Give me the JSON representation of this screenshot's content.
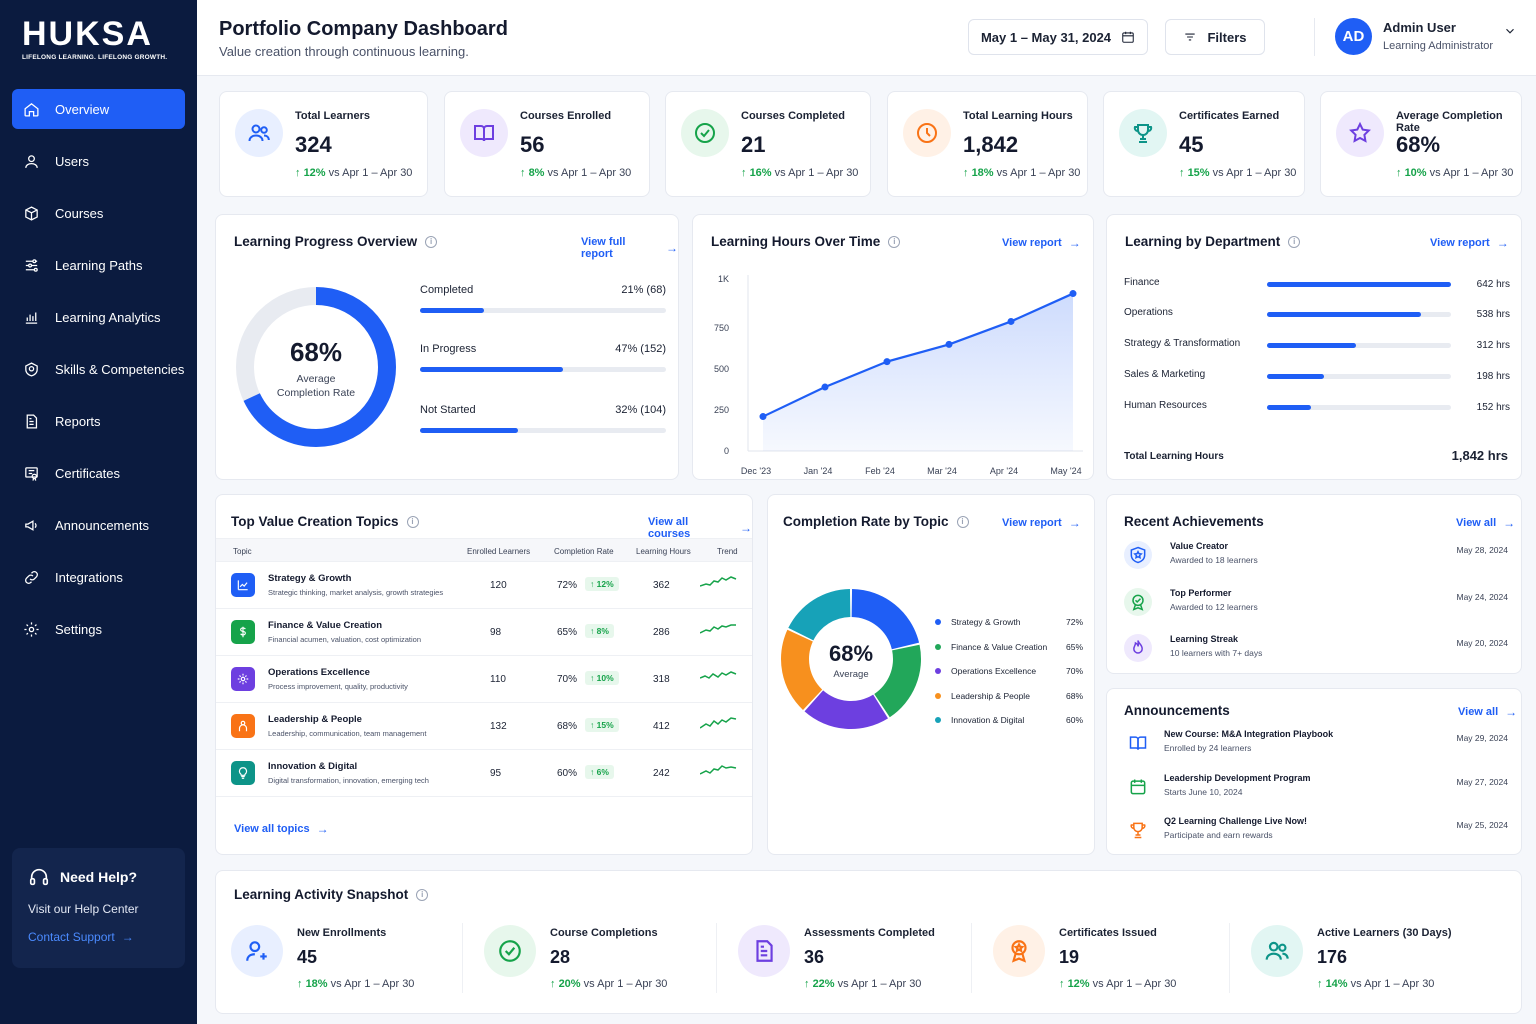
{
  "brand": {
    "logo": "HUKSA",
    "tagline": "LIFELONG LEARNING. LIFELONG GROWTH."
  },
  "nav": [
    {
      "label": "Overview",
      "icon": "home-icon",
      "active": true
    },
    {
      "label": "Users",
      "icon": "user-icon"
    },
    {
      "label": "Courses",
      "icon": "cube-icon"
    },
    {
      "label": "Learning Paths",
      "icon": "sliders-icon"
    },
    {
      "label": "Learning Analytics",
      "icon": "bar-chart-icon"
    },
    {
      "label": "Skills & Competencies",
      "icon": "badge-icon"
    },
    {
      "label": "Reports",
      "icon": "report-icon"
    },
    {
      "label": "Certificates",
      "icon": "certificate-icon"
    },
    {
      "label": "Announcements",
      "icon": "megaphone-icon"
    },
    {
      "label": "Integrations",
      "icon": "link-icon"
    },
    {
      "label": "Settings",
      "icon": "gear-icon"
    }
  ],
  "help": {
    "title": "Need Help?",
    "subtitle": "Visit our Help Center",
    "link": "Contact Support"
  },
  "header": {
    "title": "Portfolio Company Dashboard",
    "subtitle": "Value creation through continuous learning.",
    "date_range": "May 1 – May 31, 2024",
    "filters": "Filters",
    "user": {
      "initials": "AD",
      "name": "Admin User",
      "role": "Learning Administrator"
    }
  },
  "kpis": [
    {
      "label": "Total Learners",
      "value": "324",
      "delta": "12%",
      "period": "vs Apr 1 – Apr 30",
      "icon": "users-icon",
      "color": "#1f5ef5",
      "bg": "#e8efff"
    },
    {
      "label": "Courses Enrolled",
      "value": "56",
      "delta": "8%",
      "period": "vs Apr 1 – Apr 30",
      "icon": "book-icon",
      "color": "#6d3fe0",
      "bg": "#efe9fd"
    },
    {
      "label": "Courses Completed",
      "value": "21",
      "delta": "16%",
      "period": "vs Apr 1 – Apr 30",
      "icon": "check-circle-icon",
      "color": "#16a34a",
      "bg": "#e7f7ec"
    },
    {
      "label": "Total Learning Hours",
      "value": "1,842",
      "delta": "18%",
      "period": "vs Apr 1 – Apr 30",
      "icon": "clock-icon",
      "color": "#f97316",
      "bg": "#fff1e6"
    },
    {
      "label": "Certificates Earned",
      "value": "45",
      "delta": "15%",
      "period": "vs Apr 1 – Apr 30",
      "icon": "trophy-icon",
      "color": "#0d9488",
      "bg": "#e2f6f3"
    },
    {
      "label": "Average Completion Rate",
      "value": "68%",
      "delta": "10%",
      "period": "vs Apr 1 – Apr 30",
      "icon": "star-icon",
      "color": "#6d3fe0",
      "bg": "#efe9fd"
    }
  ],
  "progress": {
    "title": "Learning Progress Overview",
    "link": "View full report",
    "center_value": "68%",
    "center_label_1": "Average",
    "center_label_2": "Completion Rate",
    "rate": 0.68,
    "rows": [
      {
        "label": "Completed",
        "value": "21%  (68)",
        "pct": 0.21
      },
      {
        "label": "In Progress",
        "value": "47%  (152)",
        "pct": 0.47
      },
      {
        "label": "Not Started",
        "value": "32%  (104)",
        "pct": 0.32
      }
    ]
  },
  "hours_chart": {
    "title": "Learning Hours Over Time",
    "link": "View report",
    "chart_data": {
      "type": "area",
      "x": [
        "Dec '23",
        "Jan '24",
        "Feb '24",
        "Mar '24",
        "Apr '24",
        "May '24"
      ],
      "values": [
        210,
        390,
        545,
        650,
        790,
        960
      ],
      "y_ticks": [
        "0",
        "250",
        "500",
        "750",
        "1K"
      ],
      "ylim": [
        0,
        1000
      ]
    }
  },
  "department": {
    "title": "Learning by Department",
    "link": "View report",
    "max": 642,
    "rows": [
      {
        "name": "Finance",
        "hours": 642,
        "label": "642 hrs"
      },
      {
        "name": "Operations",
        "hours": 538,
        "label": "538 hrs"
      },
      {
        "name": "Strategy & Transformation",
        "hours": 312,
        "label": "312 hrs"
      },
      {
        "name": "Sales & Marketing",
        "hours": 198,
        "label": "198 hrs"
      },
      {
        "name": "Human Resources",
        "hours": 152,
        "label": "152 hrs"
      }
    ],
    "total_label": "Total Learning Hours",
    "total_value": "1,842 hrs"
  },
  "topics": {
    "title": "Top Value Creation Topics",
    "link": "View all courses",
    "columns": [
      "Topic",
      "Enrolled Learners",
      "Completion Rate",
      "Learning Hours",
      "Trend"
    ],
    "rows": [
      {
        "name": "Strategy & Growth",
        "desc": "Strategic thinking, market analysis, growth strategies",
        "enrolled": "120",
        "rate": "72%",
        "badge": "↑ 12%",
        "hours": "362",
        "color": "#1f5ef5",
        "icon": "chart-up-icon"
      },
      {
        "name": "Finance & Value Creation",
        "desc": "Financial acumen, valuation, cost optimization",
        "enrolled": "98",
        "rate": "65%",
        "badge": "↑ 8%",
        "hours": "286",
        "color": "#16a34a",
        "icon": "dollar-icon"
      },
      {
        "name": "Operations Excellence",
        "desc": "Process improvement, quality, productivity",
        "enrolled": "110",
        "rate": "70%",
        "badge": "↑ 10%",
        "hours": "318",
        "color": "#6d3fe0",
        "icon": "cog-icon"
      },
      {
        "name": "Leadership & People",
        "desc": "Leadership, communication, team management",
        "enrolled": "132",
        "rate": "68%",
        "badge": "↑ 15%",
        "hours": "412",
        "color": "#f97316",
        "icon": "people-icon"
      },
      {
        "name": "Innovation & Digital",
        "desc": "Digital transformation, innovation, emerging tech",
        "enrolled": "95",
        "rate": "60%",
        "badge": "↑ 6%",
        "hours": "242",
        "color": "#0d9488",
        "icon": "bulb-icon"
      }
    ],
    "footer_link": "View all topics"
  },
  "topic_rate": {
    "title": "Completion Rate by Topic",
    "link": "View report",
    "center_value": "68%",
    "center_label": "Average",
    "chart_data": {
      "type": "pie",
      "labels": [
        "Strategy & Growth",
        "Finance & Value Creation",
        "Operations Excellence",
        "Leadership & People",
        "Innovation & Digital"
      ],
      "values": [
        72,
        65,
        70,
        68,
        60
      ],
      "display": [
        "72%",
        "65%",
        "70%",
        "68%",
        "60%"
      ],
      "colors": [
        "#1f5ef5",
        "#22a75a",
        "#6d3fe0",
        "#f7901e",
        "#17a2b8"
      ]
    }
  },
  "achievements": {
    "title": "Recent Achievements",
    "link": "View all",
    "items": [
      {
        "title": "Value Creator",
        "sub": "Awarded to 18 learners",
        "date": "May 28, 2024",
        "icon": "shield-icon",
        "color": "#1f5ef5",
        "bg": "#e8efff"
      },
      {
        "title": "Top Performer",
        "sub": "Awarded to 12 learners",
        "date": "May 24, 2024",
        "icon": "medal-icon",
        "color": "#16a34a",
        "bg": "#e7f7ec"
      },
      {
        "title": "Learning Streak",
        "sub": "10 learners with 7+ days",
        "date": "May 20, 2024",
        "icon": "flame-icon",
        "color": "#6d3fe0",
        "bg": "#efe9fd"
      }
    ]
  },
  "announcements": {
    "title": "Announcements",
    "link": "View all",
    "items": [
      {
        "title": "New Course: M&A Integration Playbook",
        "sub": "Enrolled by 24 learners",
        "date": "May 29, 2024",
        "icon": "book-icon",
        "color": "#1f5ef5"
      },
      {
        "title": "Leadership Development Program",
        "sub": "Starts June 10, 2024",
        "date": "May 27, 2024",
        "icon": "calendar-icon",
        "color": "#16a34a"
      },
      {
        "title": "Q2 Learning Challenge Live Now!",
        "sub": "Participate and earn rewards",
        "date": "May 25, 2024",
        "icon": "trophy-icon",
        "color": "#f97316"
      }
    ]
  },
  "snapshot": {
    "title": "Learning Activity Snapshot",
    "items": [
      {
        "label": "New Enrollments",
        "value": "45",
        "delta": "18%",
        "period": "vs Apr 1 – Apr 30",
        "icon": "user-plus-icon",
        "color": "#1f5ef5",
        "bg": "#e8efff"
      },
      {
        "label": "Course Completions",
        "value": "28",
        "delta": "20%",
        "period": "vs Apr 1 – Apr 30",
        "icon": "check-circle-icon",
        "color": "#16a34a",
        "bg": "#e7f7ec"
      },
      {
        "label": "Assessments Completed",
        "value": "36",
        "delta": "22%",
        "period": "vs Apr 1 – Apr 30",
        "icon": "document-icon",
        "color": "#6d3fe0",
        "bg": "#efe9fd"
      },
      {
        "label": "Certificates Issued",
        "value": "19",
        "delta": "12%",
        "period": "vs Apr 1 – Apr 30",
        "icon": "award-icon",
        "color": "#f97316",
        "bg": "#fff1e6"
      },
      {
        "label": "Active Learners (30 Days)",
        "value": "176",
        "delta": "14%",
        "period": "vs Apr 1 – Apr 30",
        "icon": "users-icon",
        "color": "#0d9488",
        "bg": "#e2f6f3"
      }
    ]
  }
}
